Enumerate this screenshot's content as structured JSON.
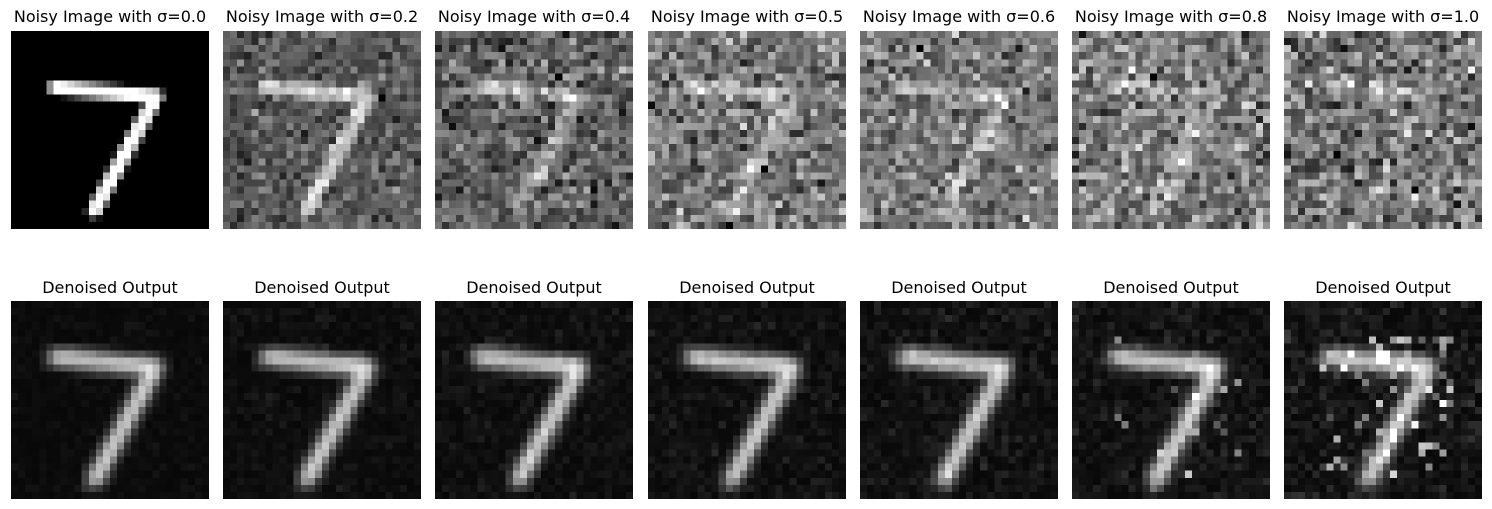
{
  "figure": {
    "rows": [
      {
        "name": "noisy",
        "panels": [
          {
            "title": "Noisy Image with σ=0.0",
            "sigma": 0.0,
            "kind": "noisy"
          },
          {
            "title": "Noisy Image with σ=0.2",
            "sigma": 0.2,
            "kind": "noisy"
          },
          {
            "title": "Noisy Image with σ=0.4",
            "sigma": 0.4,
            "kind": "noisy"
          },
          {
            "title": "Noisy Image with σ=0.5",
            "sigma": 0.5,
            "kind": "noisy"
          },
          {
            "title": "Noisy Image with σ=0.6",
            "sigma": 0.6,
            "kind": "noisy"
          },
          {
            "title": "Noisy Image with σ=0.8",
            "sigma": 0.8,
            "kind": "noisy"
          },
          {
            "title": "Noisy Image with σ=1.0",
            "sigma": 1.0,
            "kind": "noisy"
          }
        ]
      },
      {
        "name": "denoised",
        "panels": [
          {
            "title": "Denoised Output",
            "sigma": 0.0,
            "kind": "denoised"
          },
          {
            "title": "Denoised Output",
            "sigma": 0.2,
            "kind": "denoised"
          },
          {
            "title": "Denoised Output",
            "sigma": 0.4,
            "kind": "denoised"
          },
          {
            "title": "Denoised Output",
            "sigma": 0.5,
            "kind": "denoised"
          },
          {
            "title": "Denoised Output",
            "sigma": 0.6,
            "kind": "denoised"
          },
          {
            "title": "Denoised Output",
            "sigma": 0.8,
            "kind": "denoised"
          },
          {
            "title": "Denoised Output",
            "sigma": 1.0,
            "kind": "denoised"
          }
        ]
      }
    ],
    "image_grid": 28,
    "digit": "7"
  }
}
